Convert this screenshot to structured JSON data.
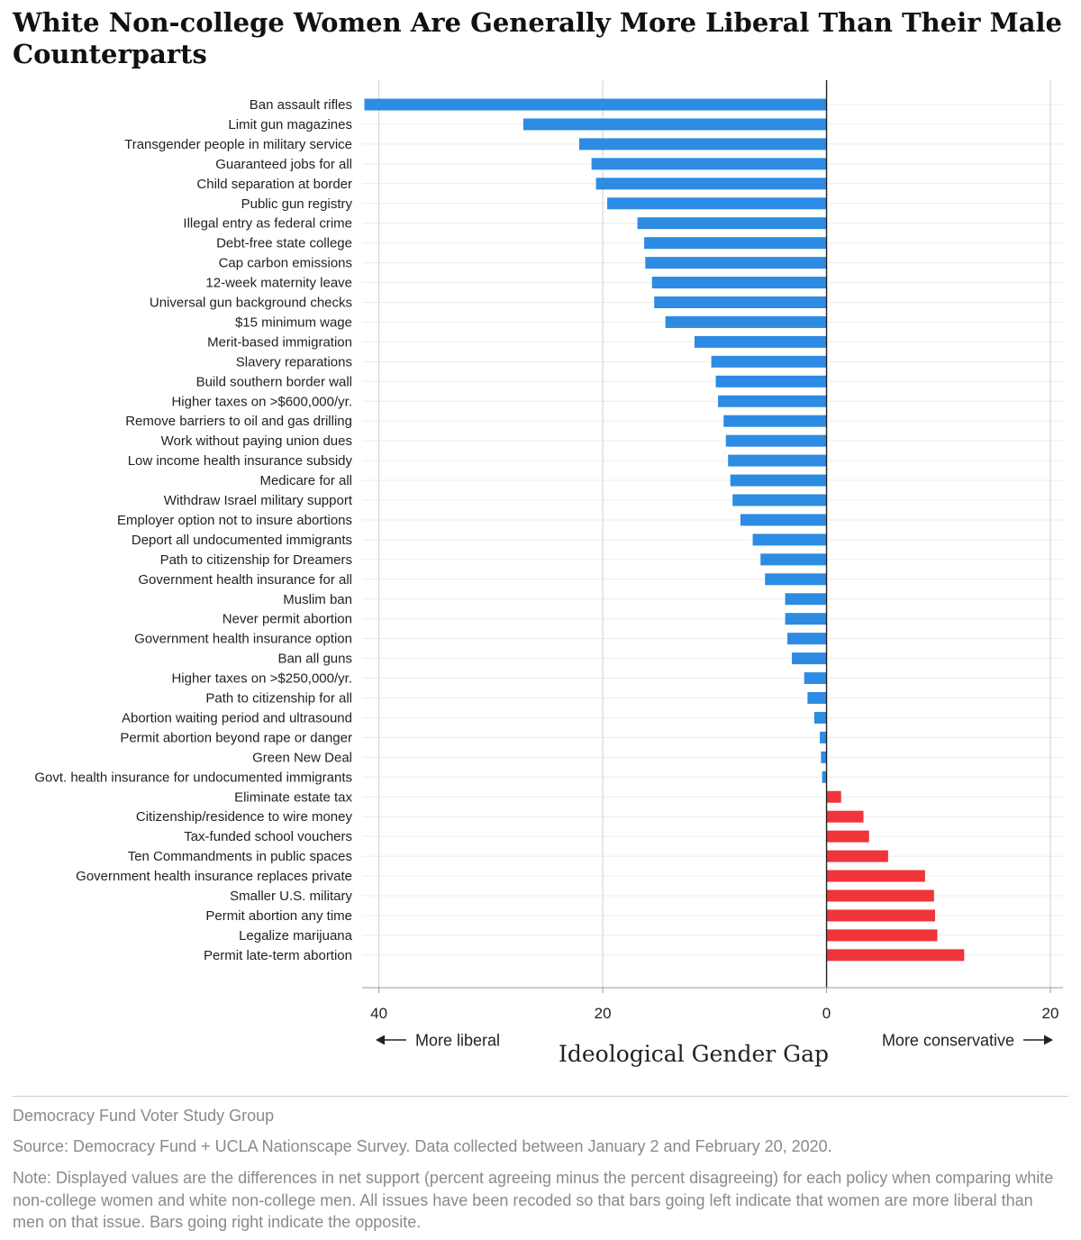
{
  "header": {
    "title": "White Non-college Women Are Generally More Liberal Than Their Male Counterparts"
  },
  "chart_data": {
    "type": "bar",
    "orientation": "horizontal",
    "xlabel": "Ideological Gender Gap",
    "direction_left": "More liberal",
    "direction_right": "More conservative",
    "xlim": [
      -41.5,
      20
    ],
    "xticks": [
      {
        "value": -40,
        "label": "40"
      },
      {
        "value": -20,
        "label": "20"
      },
      {
        "value": 0,
        "label": "0"
      },
      {
        "value": 20,
        "label": "20"
      }
    ],
    "grid": true,
    "colors": {
      "liberal": "#2d8be3",
      "conservative": "#f0353a"
    },
    "categories": [
      "Ban assault rifles",
      "Limit gun magazines",
      "Transgender people in military service",
      "Guaranteed jobs for all",
      "Child separation at border",
      "Public gun registry",
      "Illegal entry as federal crime",
      "Debt-free state college",
      "Cap carbon emissions",
      "12-week maternity leave",
      "Universal gun background checks",
      "$15 minimum wage",
      "Merit-based immigration",
      "Slavery reparations",
      "Build southern border wall",
      "Higher taxes on >$600,000/yr.",
      "Remove barriers to oil and gas drilling",
      "Work without paying union dues",
      "Low income health insurance subsidy",
      "Medicare for all",
      "Withdraw Israel military support",
      "Employer option not to insure abortions",
      "Deport all undocumented immigrants",
      "Path to citizenship for Dreamers",
      "Government health insurance for all",
      "Muslim ban",
      "Never permit abortion",
      "Government health insurance option",
      "Ban all guns",
      "Higher taxes on >$250,000/yr.",
      "Path to citizenship for all",
      "Abortion waiting period and ultrasound",
      "Permit abortion beyond rape or danger",
      "Green New Deal",
      "Govt. health insurance for undocumented immigrants",
      "Eliminate estate tax",
      "Citizenship/residence to wire money",
      "Tax-funded school vouchers",
      "Ten Commandments in public spaces",
      "Government health insurance replaces private",
      "Smaller U.S. military",
      "Permit abortion any time",
      "Legalize marijuana",
      "Permit late-term abortion"
    ],
    "values": [
      -41.3,
      -27.1,
      -22.1,
      -21.0,
      -20.6,
      -19.6,
      -16.9,
      -16.3,
      -16.2,
      -15.6,
      -15.4,
      -14.4,
      -11.8,
      -10.3,
      -9.9,
      -9.7,
      -9.2,
      -9.0,
      -8.8,
      -8.6,
      -8.4,
      -7.7,
      -6.6,
      -5.9,
      -5.5,
      -3.7,
      -3.7,
      -3.5,
      -3.1,
      -2.0,
      -1.7,
      -1.1,
      -0.6,
      -0.5,
      -0.4,
      1.3,
      3.3,
      3.8,
      5.5,
      8.8,
      9.6,
      9.7,
      9.9,
      12.3
    ]
  },
  "footer": {
    "brand": "Democracy Fund Voter Study Group",
    "source": "Source: Democracy Fund + UCLA Nationscape Survey. Data collected between January 2 and February 20, 2020.",
    "note": "Note: Displayed values are the differences in net support (percent agreeing minus the percent disagreeing) for each policy when comparing white non-college women and white non-college men. All issues have been recoded so that bars going left indicate that women are more liberal than men on that issue. Bars going right indicate the opposite."
  }
}
